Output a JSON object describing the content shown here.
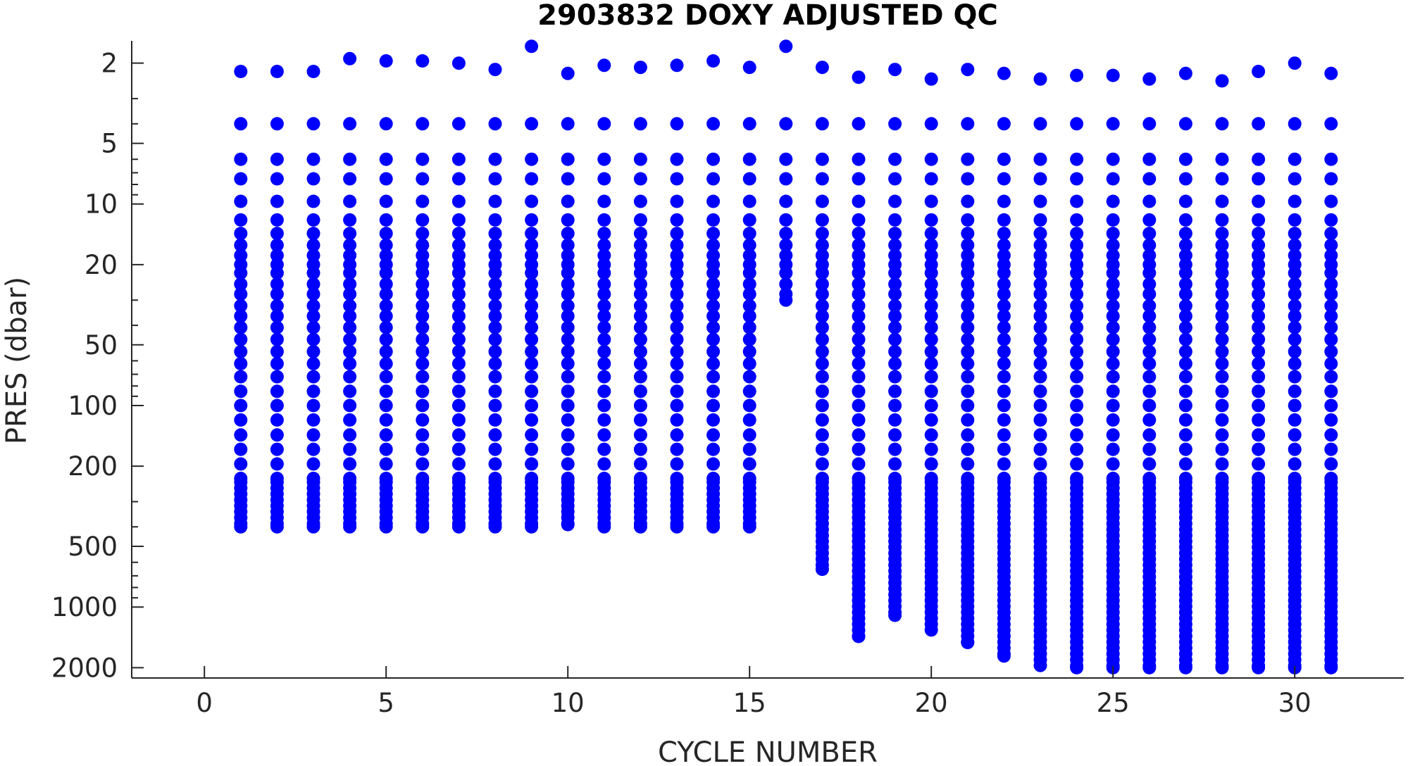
{
  "chart_data": {
    "type": "scatter",
    "title": "2903832  DOXY ADJUSTED QC",
    "xlabel": "CYCLE NUMBER",
    "ylabel": "PRES (dbar)",
    "xlim": [
      -2,
      33
    ],
    "ylim": [
      1.55,
      2250
    ],
    "y_scale": "log",
    "y_reversed": true,
    "grid": false,
    "legend": "none",
    "marker_color": "#0000ff",
    "x_ticks": [
      0,
      5,
      10,
      15,
      20,
      25,
      30
    ],
    "y_ticks": [
      2,
      5,
      10,
      20,
      50,
      100,
      200,
      500,
      1000,
      2000
    ],
    "shallow_levels": [
      4,
      6,
      7.5,
      9.7,
      12,
      14,
      16,
      18,
      20,
      22,
      25,
      28,
      32,
      36,
      41,
      47,
      54,
      62,
      72,
      85,
      100,
      118,
      140,
      165,
      195,
      230
    ],
    "profiles": [
      {
        "cycle": 1,
        "surface": 2.2,
        "max_pres": 400
      },
      {
        "cycle": 2,
        "surface": 2.2,
        "max_pres": 400
      },
      {
        "cycle": 3,
        "surface": 2.2,
        "max_pres": 400
      },
      {
        "cycle": 4,
        "surface": 1.9,
        "max_pres": 400
      },
      {
        "cycle": 5,
        "surface": 1.95,
        "max_pres": 400
      },
      {
        "cycle": 6,
        "surface": 1.95,
        "max_pres": 400
      },
      {
        "cycle": 7,
        "surface": 2.0,
        "max_pres": 400
      },
      {
        "cycle": 8,
        "surface": 2.15,
        "max_pres": 400
      },
      {
        "cycle": 9,
        "surface": 1.65,
        "max_pres": 400
      },
      {
        "cycle": 10,
        "surface": 2.25,
        "max_pres": 390
      },
      {
        "cycle": 11,
        "surface": 2.05,
        "max_pres": 400
      },
      {
        "cycle": 12,
        "surface": 2.1,
        "max_pres": 400
      },
      {
        "cycle": 13,
        "surface": 2.05,
        "max_pres": 400
      },
      {
        "cycle": 14,
        "surface": 1.95,
        "max_pres": 400
      },
      {
        "cycle": 15,
        "surface": 2.1,
        "max_pres": 400
      },
      {
        "cycle": 16,
        "surface": 1.65,
        "max_pres": 30
      },
      {
        "cycle": 17,
        "surface": 2.1,
        "max_pres": 650
      },
      {
        "cycle": 18,
        "surface": 2.35,
        "max_pres": 1400
      },
      {
        "cycle": 19,
        "surface": 2.15,
        "max_pres": 1100
      },
      {
        "cycle": 20,
        "surface": 2.4,
        "max_pres": 1300
      },
      {
        "cycle": 21,
        "surface": 2.15,
        "max_pres": 1500
      },
      {
        "cycle": 22,
        "surface": 2.25,
        "max_pres": 1750
      },
      {
        "cycle": 23,
        "surface": 2.4,
        "max_pres": 1950
      },
      {
        "cycle": 24,
        "surface": 2.3,
        "max_pres": 2000
      },
      {
        "cycle": 25,
        "surface": 2.3,
        "max_pres": 2000
      },
      {
        "cycle": 26,
        "surface": 2.4,
        "max_pres": 2000
      },
      {
        "cycle": 27,
        "surface": 2.25,
        "max_pres": 2000
      },
      {
        "cycle": 28,
        "surface": 2.45,
        "max_pres": 2000
      },
      {
        "cycle": 29,
        "surface": 2.2,
        "max_pres": 2000
      },
      {
        "cycle": 30,
        "surface": 2.0,
        "max_pres": 2000
      },
      {
        "cycle": 31,
        "surface": 2.25,
        "max_pres": 2000
      }
    ]
  }
}
